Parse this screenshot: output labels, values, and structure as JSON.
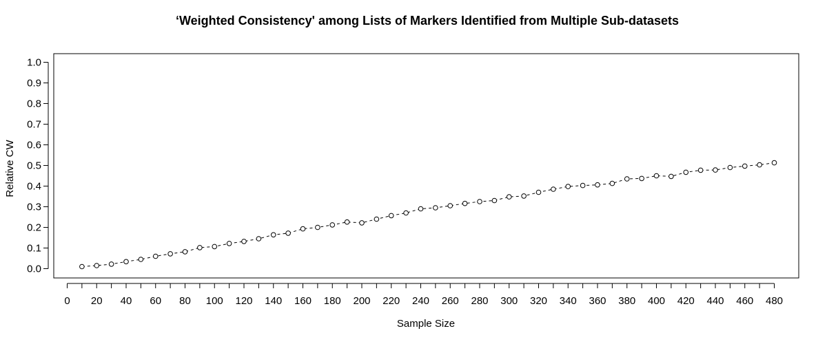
{
  "chart_data": {
    "type": "line",
    "title": "‘Weighted Consistency' among Lists of Markers Identified from Multiple Sub-datasets",
    "xlabel": "Sample Size",
    "ylabel": "Relative CW",
    "xlim": [
      0,
      490
    ],
    "ylim": [
      -0.04,
      1.04
    ],
    "x_ticks": [
      0,
      20,
      40,
      60,
      80,
      100,
      120,
      140,
      160,
      180,
      200,
      220,
      240,
      260,
      280,
      300,
      320,
      340,
      360,
      380,
      400,
      420,
      440,
      460,
      480
    ],
    "x_minor_ticks": [
      10,
      30,
      50,
      70,
      90,
      110,
      130,
      150,
      170,
      190,
      210,
      230,
      250,
      270,
      290,
      310,
      330,
      350,
      370,
      390,
      410,
      430,
      450,
      470
    ],
    "y_ticks": [
      "0.0",
      "0.1",
      "0.2",
      "0.3",
      "0.4",
      "0.5",
      "0.6",
      "0.7",
      "0.8",
      "0.9",
      "1.0"
    ],
    "grid": false,
    "line_style": "dashed",
    "marker": "open-circle",
    "series": [
      {
        "x": [
          10,
          20,
          30,
          40,
          50,
          60,
          70,
          80,
          90,
          100,
          110,
          120,
          130,
          140,
          150,
          160,
          170,
          180,
          190,
          200,
          210,
          220,
          230,
          240,
          250,
          260,
          270,
          280,
          290,
          300,
          310,
          320,
          330,
          340,
          350,
          360,
          370,
          380,
          390,
          400,
          410,
          420,
          430,
          440,
          450,
          460,
          470,
          480
        ],
        "values": [
          0.01,
          0.015,
          0.022,
          0.034,
          0.045,
          0.06,
          0.072,
          0.082,
          0.102,
          0.107,
          0.122,
          0.132,
          0.145,
          0.164,
          0.172,
          0.193,
          0.2,
          0.212,
          0.226,
          0.222,
          0.24,
          0.257,
          0.27,
          0.29,
          0.295,
          0.305,
          0.316,
          0.325,
          0.33,
          0.348,
          0.352,
          0.37,
          0.385,
          0.398,
          0.403,
          0.406,
          0.413,
          0.435,
          0.437,
          0.45,
          0.447,
          0.467,
          0.477,
          0.478,
          0.49,
          0.497,
          0.503,
          0.513
        ]
      }
    ]
  }
}
